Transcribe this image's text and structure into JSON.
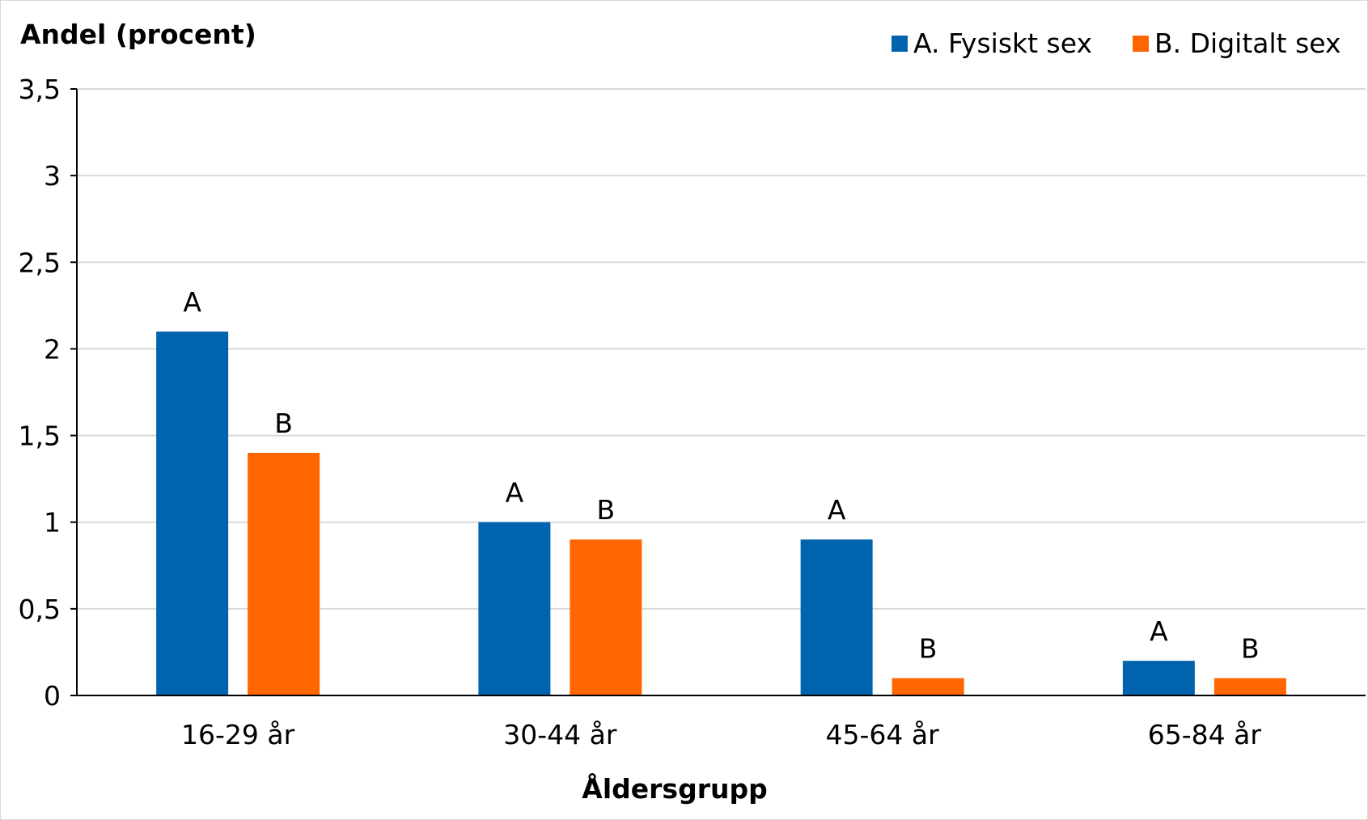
{
  "chart_data": {
    "type": "bar",
    "title": "",
    "ylabel": "Andel (procent)",
    "xlabel": "Åldersgrupp",
    "categories": [
      "16-29 år",
      "30-44 år",
      "45-64 år",
      "65-84 år"
    ],
    "series": [
      {
        "name": "A. Fysiskt sex",
        "label": "A",
        "color": "#0063ae",
        "values": [
          2.1,
          1.0,
          0.9,
          0.2
        ]
      },
      {
        "name": "B. Digitalt sex",
        "label": "B",
        "color": "#ff6600",
        "values": [
          1.4,
          0.9,
          0.1,
          0.1
        ]
      }
    ],
    "ylim": [
      0,
      3.5
    ],
    "yticks": [
      0,
      0.5,
      1,
      1.5,
      2,
      2.5,
      3,
      3.5
    ],
    "ytick_labels": [
      "0",
      "0,5",
      "1",
      "1,5",
      "2",
      "2,5",
      "3",
      "3,5"
    ],
    "grid": true,
    "legend_position": "top-right"
  }
}
